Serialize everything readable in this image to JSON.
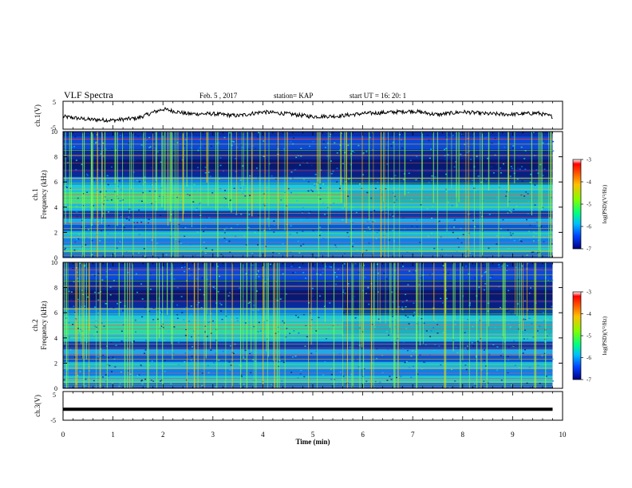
{
  "header": {
    "title": "VLF Spectra",
    "date": "Feb. 5  , 2017",
    "station": "station= KAP",
    "start_ut": "start  UT =   16: 20: 1"
  },
  "colorbar": {
    "label": "log(PSD)(V²/Hz)",
    "ticks": [
      "-3",
      "-4",
      "-5",
      "-6",
      "-7"
    ],
    "colors": [
      "#ff0000",
      "#ffbf00",
      "#80ff00",
      "#00ff80",
      "#00bfff",
      "#0040ff",
      "#000080"
    ]
  },
  "chart_data": [
    {
      "type": "line",
      "name": "ch1-waveform",
      "ylabel": "ch.1(V)",
      "yticks": [
        "5",
        "-5"
      ],
      "ylim": [
        -5,
        5
      ],
      "xlim": [
        0,
        10
      ],
      "x": [
        0,
        0.5,
        1,
        1.5,
        1.8,
        2,
        2.5,
        3,
        3.5,
        4,
        4.5,
        5,
        5.5,
        6,
        6.5,
        7,
        7.5,
        8,
        8.5,
        9,
        9.5,
        9.8
      ],
      "y": [
        -0.5,
        -1.5,
        -1.8,
        -1.0,
        1.0,
        2.2,
        0.5,
        0.5,
        -0.2,
        1.2,
        0.5,
        -0.5,
        -0.3,
        0.6,
        1.0,
        1.5,
        0.2,
        1.2,
        0.5,
        0.3,
        0.8,
        -0.5
      ]
    },
    {
      "type": "heatmap",
      "name": "ch1-spectrogram",
      "ylabel": "ch.1\nFrequency (kHz)",
      "ylabel_top": "ch.1",
      "ylabel_bottom": "Frequency  (kHz)",
      "yticks": [
        "0",
        "2",
        "4",
        "6",
        "8",
        "10"
      ],
      "ylim": [
        0,
        10
      ],
      "xlim": [
        0,
        10
      ]
    },
    {
      "type": "heatmap",
      "name": "ch2-spectrogram",
      "ylabel_top": "ch.2",
      "ylabel_bottom": "Frequency  (kHz)",
      "yticks": [
        "0",
        "2",
        "4",
        "6",
        "8",
        "10"
      ],
      "ylim": [
        0,
        10
      ],
      "xlim": [
        0,
        10
      ]
    },
    {
      "type": "line",
      "name": "ch3-waveform",
      "ylabel": "ch.3(V)",
      "yticks": [
        "5",
        "-5"
      ],
      "ylim": [
        -5,
        5
      ],
      "xlim": [
        0,
        10
      ],
      "x": [
        0,
        9.8
      ],
      "y": [
        -1.2,
        -1.2
      ]
    }
  ],
  "xaxis": {
    "label": "Time  (min)",
    "ticks": [
      "0",
      "1",
      "2",
      "3",
      "4",
      "5",
      "6",
      "7",
      "8",
      "9",
      "10"
    ]
  }
}
